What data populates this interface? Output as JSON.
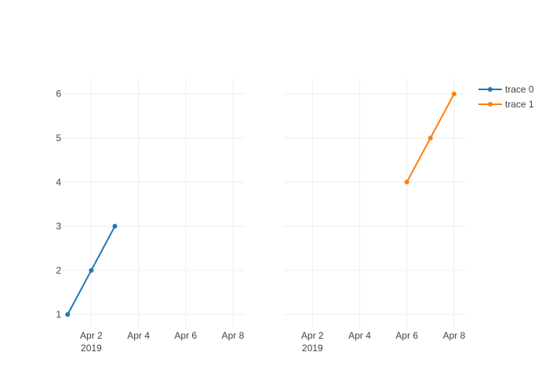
{
  "chart_data": {
    "type": "line",
    "subplots": [
      {
        "x_range": [
          "2019-03-31T19:00",
          "2019-04-08T12:00"
        ],
        "y_range": [
          0.7,
          6.35
        ],
        "x_ticks": [
          {
            "date": "2019-04-02",
            "label": "Apr 2",
            "sublabel": "2019"
          },
          {
            "date": "2019-04-04",
            "label": "Apr 4",
            "sublabel": ""
          },
          {
            "date": "2019-04-06",
            "label": "Apr 6",
            "sublabel": ""
          },
          {
            "date": "2019-04-08",
            "label": "Apr 8",
            "sublabel": ""
          }
        ],
        "y_ticks": [
          1,
          2,
          3,
          4,
          5,
          6
        ],
        "grid": true
      },
      {
        "x_range": [
          "2019-03-31T19:00",
          "2019-04-08T12:00"
        ],
        "y_range": [
          0.7,
          6.35
        ],
        "x_ticks": [
          {
            "date": "2019-04-02",
            "label": "Apr 2",
            "sublabel": "2019"
          },
          {
            "date": "2019-04-04",
            "label": "Apr 4",
            "sublabel": ""
          },
          {
            "date": "2019-04-06",
            "label": "Apr 6",
            "sublabel": ""
          },
          {
            "date": "2019-04-08",
            "label": "Apr 8",
            "sublabel": ""
          }
        ],
        "y_ticks": [
          1,
          2,
          3,
          4,
          5,
          6
        ],
        "grid": true
      }
    ],
    "series": [
      {
        "name": "trace 0",
        "subplot": 0,
        "color": "#1f77b4",
        "x": [
          "2019-04-01",
          "2019-04-02",
          "2019-04-03"
        ],
        "y": [
          1,
          2,
          3
        ]
      },
      {
        "name": "trace 1",
        "subplot": 1,
        "color": "#ff7f0e",
        "x": [
          "2019-04-06",
          "2019-04-07",
          "2019-04-08"
        ],
        "y": [
          4,
          5,
          6
        ]
      }
    ],
    "legend": {
      "position": "top-right"
    }
  }
}
